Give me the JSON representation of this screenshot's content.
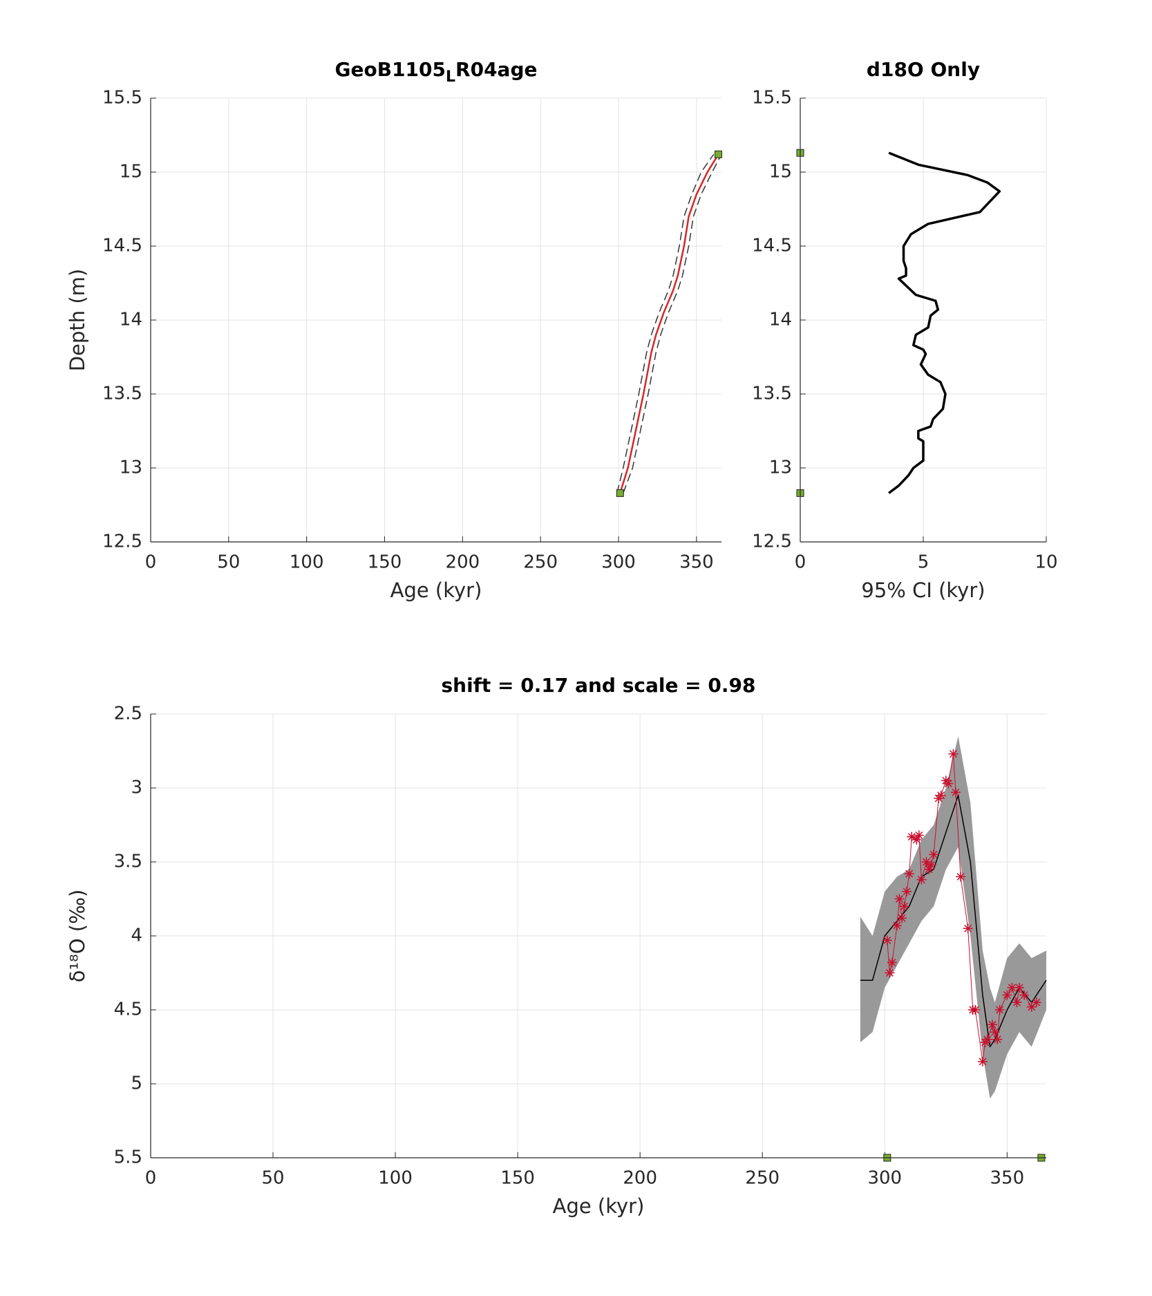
{
  "chart_data": [
    {
      "type": "line",
      "title": "GeoB1105_LR04age",
      "xlabel": "Age (kyr)",
      "ylabel": "Depth (m)",
      "xlim": [
        0,
        366
      ],
      "ylim": [
        12.5,
        15.5
      ],
      "xticks": [
        0,
        50,
        100,
        150,
        200,
        250,
        300,
        350
      ],
      "yticks": [
        12.5,
        13,
        13.5,
        14,
        14.5,
        15,
        15.5
      ],
      "grid": true,
      "yreverse": false,
      "series": [
        {
          "color": "#333333",
          "line": "dashed",
          "marker": "none",
          "width": 1.5,
          "x": [
            299,
            303,
            308,
            313,
            318,
            321,
            326,
            332,
            335,
            339,
            342,
            347,
            353,
            361
          ],
          "values": [
            12.83,
            13.0,
            13.25,
            13.5,
            13.78,
            13.9,
            14.05,
            14.2,
            14.3,
            14.5,
            14.7,
            14.85,
            15.0,
            15.12
          ]
        },
        {
          "color": "#333333",
          "line": "dashed",
          "marker": "none",
          "width": 1.5,
          "x": [
            303,
            309,
            314,
            319,
            324,
            327,
            332,
            338,
            341,
            345,
            348,
            353,
            360,
            366
          ],
          "values": [
            12.83,
            13.0,
            13.25,
            13.5,
            13.78,
            13.9,
            14.05,
            14.2,
            14.3,
            14.5,
            14.7,
            14.85,
            15.0,
            15.12
          ]
        },
        {
          "color": "#d62728",
          "line": "solid",
          "marker": "none",
          "width": 2.5,
          "x": [
            301,
            306,
            311,
            316,
            321,
            324,
            329,
            335,
            338,
            342,
            345,
            350,
            357,
            364
          ],
          "values": [
            12.83,
            13.0,
            13.25,
            13.5,
            13.78,
            13.9,
            14.05,
            14.2,
            14.3,
            14.5,
            14.7,
            14.85,
            15.0,
            15.12
          ]
        },
        {
          "color": "#77ac30",
          "line": "none",
          "marker": "square",
          "width": 1,
          "x": [
            301,
            364
          ],
          "values": [
            12.83,
            15.12
          ]
        }
      ]
    },
    {
      "type": "line",
      "title": "d18O Only",
      "xlabel": "95% CI (kyr)",
      "xlim": [
        0,
        10
      ],
      "ylim": [
        12.5,
        15.5
      ],
      "xticks": [
        0,
        5,
        10
      ],
      "yticks": [
        12.5,
        13,
        13.5,
        14,
        14.5,
        15,
        15.5
      ],
      "grid": true,
      "yreverse": false,
      "series": [
        {
          "color": "#000000",
          "line": "solid",
          "marker": "none",
          "width": 3.5,
          "x": [
            3.6,
            4.8,
            6.8,
            7.6,
            8.1,
            7.3,
            5.2,
            4.5,
            4.2,
            4.2,
            4.3,
            4.3,
            4.0,
            4.7,
            5.5,
            5.6,
            5.3,
            5.2,
            4.7,
            4.6,
            5.0,
            5.1,
            4.9,
            5.2,
            5.7,
            5.9,
            5.8,
            5.4,
            5.3,
            4.8,
            4.8,
            5.0,
            5.0,
            4.6,
            4.4,
            4.0,
            3.6
          ],
          "values": [
            15.13,
            15.05,
            14.98,
            14.93,
            14.87,
            14.73,
            14.65,
            14.58,
            14.5,
            14.4,
            14.35,
            14.3,
            14.28,
            14.17,
            14.13,
            14.07,
            14.03,
            13.95,
            13.9,
            13.83,
            13.8,
            13.77,
            13.7,
            13.63,
            13.58,
            13.5,
            13.4,
            13.33,
            13.28,
            13.25,
            13.2,
            13.18,
            13.05,
            13.0,
            12.95,
            12.88,
            12.83
          ]
        },
        {
          "color": "#77ac30",
          "line": "none",
          "marker": "square",
          "width": 1,
          "x": [
            0,
            0
          ],
          "values": [
            15.13,
            12.83
          ]
        }
      ]
    },
    {
      "type": "line",
      "title": "shift = 0.17 and scale = 0.98",
      "xlabel": "Age (kyr)",
      "ylabel": "δ¹⁸O (‰)",
      "xlim": [
        0,
        366
      ],
      "ylim": [
        2.5,
        5.5
      ],
      "xticks": [
        0,
        50,
        100,
        150,
        200,
        250,
        300,
        350
      ],
      "yticks": [
        2.5,
        3,
        3.5,
        4,
        4.5,
        5,
        5.5
      ],
      "grid": true,
      "yreverse": true,
      "band": {
        "color": "#999999",
        "x": [
          290,
          295,
          300,
          305,
          310,
          315,
          320,
          325,
          330,
          335,
          340,
          343,
          345,
          350,
          355,
          360,
          366
        ],
        "lower": [
          3.87,
          4.0,
          3.7,
          3.6,
          3.55,
          3.35,
          3.25,
          3.0,
          2.65,
          3.1,
          4.1,
          4.35,
          4.45,
          4.15,
          4.05,
          4.15,
          4.1
        ],
        "upper": [
          4.72,
          4.65,
          4.35,
          4.2,
          4.05,
          3.9,
          3.8,
          3.55,
          3.4,
          4.0,
          4.8,
          5.1,
          5.05,
          4.8,
          4.65,
          4.75,
          4.5
        ]
      },
      "series": [
        {
          "color": "#000000",
          "line": "solid",
          "marker": "none",
          "width": 1.5,
          "x": [
            290,
            295,
            300,
            305,
            310,
            315,
            320,
            325,
            330,
            335,
            340,
            343,
            345,
            350,
            355,
            360,
            366
          ],
          "values": [
            4.3,
            4.3,
            4.0,
            3.9,
            3.8,
            3.6,
            3.55,
            3.3,
            3.05,
            3.5,
            4.4,
            4.75,
            4.7,
            4.5,
            4.35,
            4.45,
            4.3
          ]
        },
        {
          "color": "#c8102e",
          "line": "solid",
          "marker": "star",
          "width": 1,
          "x": [
            301,
            302,
            303,
            305,
            306,
            307,
            308,
            309,
            310,
            311,
            313,
            314,
            315,
            317,
            318,
            319,
            320,
            322,
            323,
            325,
            326,
            328,
            329,
            331,
            334,
            336,
            337,
            340,
            341,
            342,
            344,
            345,
            346,
            347,
            350,
            352,
            354,
            355,
            357,
            360,
            362
          ],
          "values": [
            4.03,
            4.25,
            4.18,
            3.93,
            3.75,
            3.88,
            3.8,
            3.7,
            3.58,
            3.33,
            3.35,
            3.32,
            3.62,
            3.5,
            3.55,
            3.52,
            3.45,
            3.07,
            3.05,
            2.95,
            2.97,
            2.77,
            3.03,
            3.6,
            3.95,
            4.5,
            4.5,
            4.85,
            4.72,
            4.7,
            4.6,
            4.65,
            4.7,
            4.5,
            4.4,
            4.35,
            4.45,
            4.35,
            4.4,
            4.48,
            4.45
          ]
        },
        {
          "color": "#77ac30",
          "line": "none",
          "marker": "square",
          "width": 1,
          "x": [
            301,
            364
          ],
          "values": [
            5.5,
            5.5
          ]
        }
      ]
    }
  ]
}
